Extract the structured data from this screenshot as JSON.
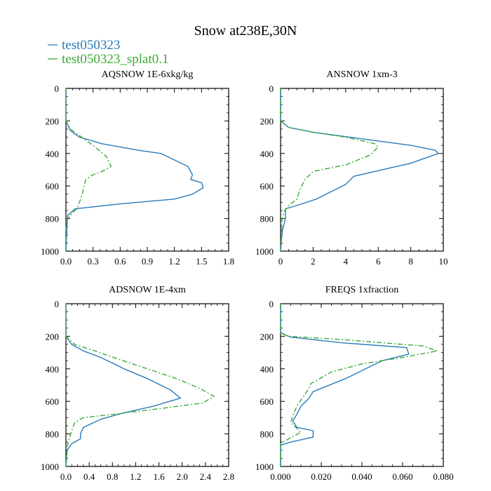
{
  "title": "Snow at238E,30N",
  "legend": [
    {
      "label": "test050323",
      "color": "#2b7bba",
      "dash": "solid"
    },
    {
      "label": "test050323_splat0.1",
      "color": "#3aaa35",
      "dash": "dashdot"
    }
  ],
  "chart_data": [
    {
      "type": "line",
      "title": "AQSNOW  1E-6xkg/kg",
      "xlim": [
        0,
        1.8
      ],
      "ylim": [
        1000,
        0
      ],
      "xticks": [
        "0.0",
        "0.3",
        "0.6",
        "0.9",
        "1.2",
        "1.5",
        "1.8"
      ],
      "yticks": [
        "0",
        "200",
        "400",
        "600",
        "800",
        "1000"
      ],
      "series": [
        {
          "name": "test050323",
          "x": [
            0,
            0,
            0.05,
            0.15,
            0.4,
            0.8,
            1.05,
            1.2,
            1.35,
            1.4,
            1.38,
            1.5,
            1.52,
            1.4,
            1.2,
            0.6,
            0.1,
            0.02,
            0.01,
            0.0
          ],
          "y": [
            0,
            200,
            260,
            300,
            340,
            380,
            400,
            440,
            480,
            530,
            560,
            580,
            610,
            650,
            680,
            710,
            740,
            780,
            860,
            1000
          ]
        },
        {
          "name": "test050323_splat0.1",
          "x": [
            0,
            0,
            0.05,
            0.15,
            0.3,
            0.45,
            0.5,
            0.4,
            0.3,
            0.22,
            0.2,
            0.18,
            0.15,
            0.12,
            0.08,
            0.02,
            0.0,
            0.0
          ],
          "y": [
            0,
            200,
            250,
            290,
            350,
            420,
            480,
            510,
            530,
            560,
            600,
            650,
            700,
            740,
            760,
            800,
            850,
            1000
          ]
        }
      ]
    },
    {
      "type": "line",
      "title": "ANSNOW  1xm-3",
      "xlim": [
        0,
        10
      ],
      "ylim": [
        1000,
        0
      ],
      "xticks": [
        "0",
        "2",
        "4",
        "6",
        "8",
        "10"
      ],
      "yticks": [
        "0",
        "200",
        "400",
        "600",
        "800",
        "1000"
      ],
      "series": [
        {
          "name": "test050323",
          "x": [
            0,
            0,
            0.5,
            2,
            5,
            8,
            9.5,
            9.7,
            8,
            4.5,
            4,
            2.8,
            2.2,
            1,
            0.3,
            0.3,
            0.1,
            0
          ],
          "y": [
            0,
            200,
            240,
            270,
            310,
            350,
            380,
            400,
            460,
            540,
            590,
            650,
            680,
            720,
            740,
            800,
            880,
            1000
          ]
        },
        {
          "name": "test050323_splat0.1",
          "x": [
            0,
            0,
            0.5,
            2,
            4,
            5.8,
            6,
            5.5,
            4,
            2.5,
            2,
            1.5,
            1.2,
            1,
            0.5,
            0.2,
            0.1,
            0
          ],
          "y": [
            0,
            200,
            240,
            270,
            300,
            340,
            360,
            410,
            470,
            500,
            510,
            560,
            620,
            680,
            720,
            760,
            800,
            1000
          ]
        }
      ]
    },
    {
      "type": "line",
      "title": "ADSNOW  1E-4xm",
      "xlim": [
        0,
        2.8
      ],
      "ylim": [
        1000,
        0
      ],
      "xticks": [
        "0.0",
        "0.4",
        "0.8",
        "1.2",
        "1.6",
        "2.0",
        "2.4",
        "2.8"
      ],
      "yticks": [
        "0",
        "200",
        "400",
        "600",
        "800",
        "1000"
      ],
      "series": [
        {
          "name": "test050323",
          "x": [
            0,
            0,
            0.1,
            0.3,
            0.6,
            1.0,
            1.4,
            1.8,
            1.97,
            1.5,
            1.0,
            0.6,
            0.3,
            0.25,
            0.25,
            0.1,
            0.02,
            0
          ],
          "y": [
            0,
            200,
            250,
            290,
            330,
            400,
            460,
            530,
            580,
            630,
            670,
            710,
            760,
            800,
            830,
            860,
            900,
            1000
          ]
        },
        {
          "name": "test050323_splat0.1",
          "x": [
            0,
            0,
            0.15,
            0.5,
            0.9,
            1.4,
            1.9,
            2.3,
            2.55,
            2.35,
            1.5,
            0.8,
            0.3,
            0.15,
            0.1,
            0.05,
            0.02,
            0
          ],
          "y": [
            0,
            200,
            250,
            290,
            340,
            400,
            460,
            520,
            570,
            610,
            650,
            680,
            700,
            730,
            780,
            840,
            880,
            1000
          ]
        }
      ]
    },
    {
      "type": "line",
      "title": "FREQS  1xfraction",
      "xlim": [
        0,
        0.08
      ],
      "ylim": [
        1000,
        0
      ],
      "xticks": [
        "0.000",
        "0.020",
        "0.040",
        "0.060",
        "0.080"
      ],
      "yticks": [
        "0",
        "200",
        "400",
        "600",
        "800",
        "1000"
      ],
      "series": [
        {
          "name": "test050323",
          "x": [
            0,
            0,
            0.002,
            0.005,
            0.03,
            0.062,
            0.063,
            0.05,
            0.045,
            0.032,
            0.016,
            0.014,
            0.01,
            0.008,
            0.006,
            0.008,
            0.016,
            0.016,
            0.005,
            0.0,
            0
          ],
          "y": [
            0,
            175,
            190,
            205,
            240,
            270,
            310,
            350,
            380,
            460,
            540,
            580,
            630,
            680,
            720,
            760,
            780,
            820,
            850,
            870,
            1000
          ]
        },
        {
          "name": "test050323_splat0.1",
          "x": [
            0,
            0,
            0.004,
            0.03,
            0.07,
            0.077,
            0.06,
            0.04,
            0.025,
            0.015,
            0.014,
            0.01,
            0.008,
            0.006,
            0.005,
            0.01,
            0.004,
            0.0,
            0
          ],
          "y": [
            0,
            180,
            200,
            220,
            260,
            290,
            330,
            370,
            420,
            490,
            520,
            590,
            630,
            690,
            730,
            790,
            830,
            860,
            1000
          ]
        }
      ]
    }
  ]
}
